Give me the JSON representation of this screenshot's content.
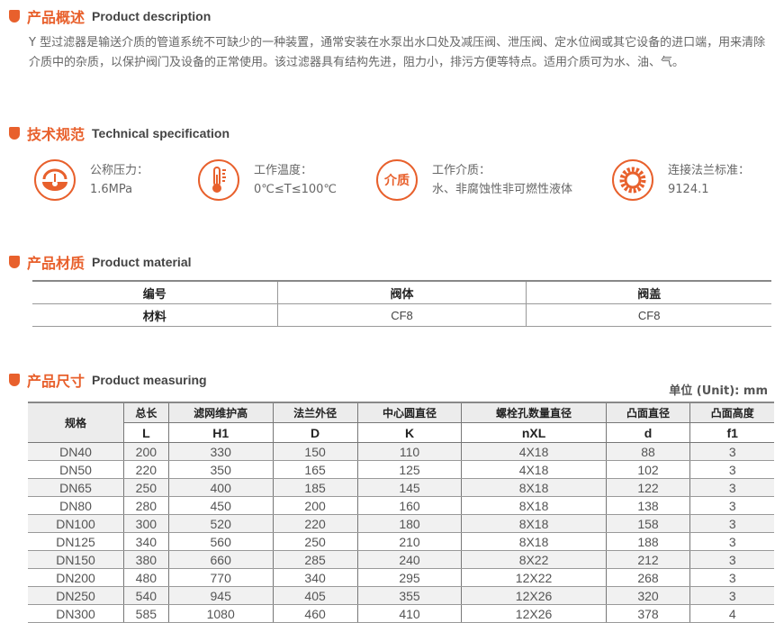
{
  "description": {
    "title_zh": "产品概述",
    "title_en": "Product description",
    "text": "Y 型过滤器是输送介质的管道系统不可缺少的一种装置，通常安装在水泵出水口处及减压阀、泄压阀、定水位阀或其它设备的进口端，用来清除介质中的杂质，以保护阀门及设备的正常使用。该过滤器具有结构先进，阻力小，排污方便等特点。适用介质可为水、油、气。"
  },
  "technical": {
    "title_zh": "技术规范",
    "title_en": "Technical specification",
    "items": [
      {
        "icon": "pressure-gauge-icon",
        "label": "公称压力：",
        "value": "1.6MPa"
      },
      {
        "icon": "thermometer-icon",
        "label": "工作温度：",
        "value": "0℃≤T≤100℃"
      },
      {
        "icon": "medium-icon",
        "icon_text": "介质",
        "label": "工作介质：",
        "value": "水、非腐蚀性非可燃性液体"
      },
      {
        "icon": "flange-gear-icon",
        "label": "连接法兰标准：",
        "value": "9124.1"
      }
    ]
  },
  "material": {
    "title_zh": "产品材质",
    "title_en": "Product material",
    "header": [
      "编号",
      "阀体",
      "阀盖"
    ],
    "row": [
      "材料",
      "CF8",
      "CF8"
    ]
  },
  "measuring": {
    "title_zh": "产品尺寸",
    "title_en": "Product measuring",
    "unit": "单位 (Unit): mm",
    "spec_header": "规格",
    "headers": [
      "总长",
      "滤网维护高",
      "法兰外径",
      "中心圆直径",
      "螺栓孔数量直径",
      "凸面直径",
      "凸面高度"
    ],
    "symbols": [
      "L",
      "H1",
      "D",
      "K",
      "nXL",
      "d",
      "f1"
    ],
    "rows": [
      [
        "DN40",
        "200",
        "330",
        "150",
        "110",
        "4X18",
        "88",
        "3"
      ],
      [
        "DN50",
        "220",
        "350",
        "165",
        "125",
        "4X18",
        "102",
        "3"
      ],
      [
        "DN65",
        "250",
        "400",
        "185",
        "145",
        "8X18",
        "122",
        "3"
      ],
      [
        "DN80",
        "280",
        "450",
        "200",
        "160",
        "8X18",
        "138",
        "3"
      ],
      [
        "DN100",
        "300",
        "520",
        "220",
        "180",
        "8X18",
        "158",
        "3"
      ],
      [
        "DN125",
        "340",
        "560",
        "250",
        "210",
        "8X18",
        "188",
        "3"
      ],
      [
        "DN150",
        "380",
        "660",
        "285",
        "240",
        "8X22",
        "212",
        "3"
      ],
      [
        "DN200",
        "480",
        "770",
        "340",
        "295",
        "12X22",
        "268",
        "3"
      ],
      [
        "DN250",
        "540",
        "945",
        "405",
        "355",
        "12X26",
        "320",
        "3"
      ],
      [
        "DN300",
        "585",
        "1080",
        "460",
        "410",
        "12X26",
        "378",
        "4"
      ]
    ]
  },
  "colors": {
    "accent": "#e8602c"
  }
}
